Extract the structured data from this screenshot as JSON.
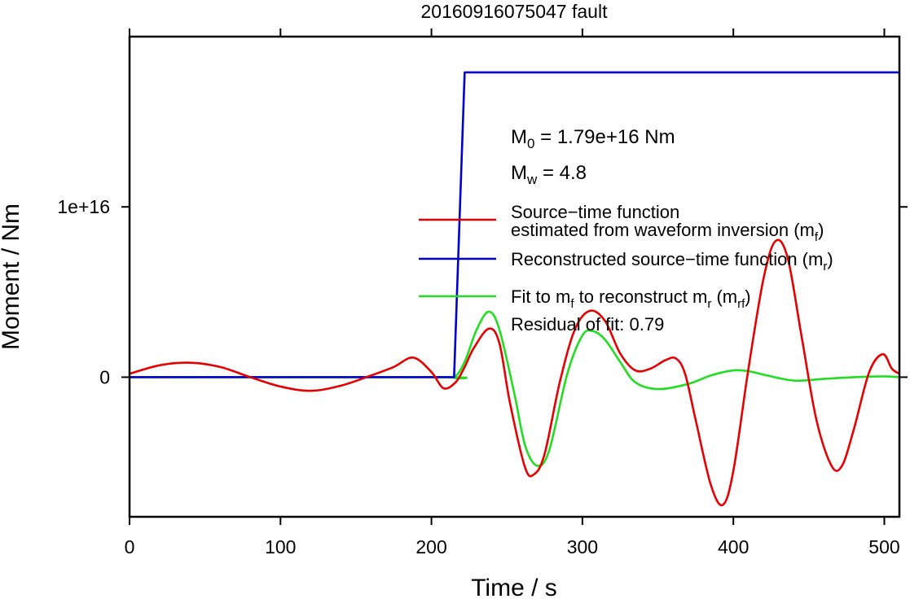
{
  "chart_data": {
    "type": "line",
    "title": "20160916075047 fault",
    "xlabel": "Time / s",
    "ylabel": "Moment / Nm",
    "xlim": [
      0,
      510
    ],
    "ylim": [
      -8200000000000000.0,
      2e+16
    ],
    "x_ticks": [
      0,
      100,
      200,
      300,
      400,
      500
    ],
    "x_tick_labels": [
      "0",
      "100",
      "200",
      "300",
      "400",
      "500"
    ],
    "y_ticks": [
      0,
      1e+16
    ],
    "y_tick_labels": [
      "0",
      "1e+16"
    ],
    "grid": false,
    "legend_position": "right",
    "annotations": {
      "m0": {
        "base": "M",
        "sub": "0",
        "rest": " = 1.79e+16 Nm"
      },
      "mw": {
        "base": "M",
        "sub": "w",
        "rest": " = 4.8"
      },
      "residual": "Residual of fit: 0.79"
    },
    "legend": [
      {
        "series": "red",
        "line1": "Source−time function",
        "line2_pre": "estimated from waveform inversion (m",
        "line2_sub": "f",
        "line2_post": ")"
      },
      {
        "series": "blue",
        "pre": "Reconstructed source−time function (m",
        "sub": "r",
        "post": ")"
      },
      {
        "series": "green",
        "pre": "Fit to m",
        "sub1": "f",
        "mid": " to reconstruct m",
        "sub2": "r",
        "mid2": " (m",
        "sub3": "rf",
        "post": ")"
      }
    ],
    "series": [
      {
        "id": "red",
        "color": "#e60000",
        "x": [
          0,
          20,
          40,
          60,
          80,
          100,
          120,
          140,
          160,
          175,
          188,
          200,
          208,
          216,
          222,
          228,
          238,
          245,
          252,
          262,
          268,
          275,
          285,
          295,
          305,
          315,
          325,
          335,
          345,
          355,
          362,
          368,
          375,
          385,
          393,
          400,
          410,
          420,
          428,
          436,
          445,
          455,
          465,
          472,
          480,
          490,
          499,
          505,
          510
        ],
        "y": [
          200000000000000.0,
          700000000000000.0,
          850000000000000.0,
          600000000000000.0,
          0.0,
          -550000000000000.0,
          -800000000000000.0,
          -500000000000000.0,
          100000000000000.0,
          600000000000000.0,
          1150000000000000.0,
          300000000000000.0,
          -650000000000000.0,
          -300000000000000.0,
          600000000000000.0,
          1700000000000000.0,
          2850000000000000.0,
          2000000000000000.0,
          -1500000000000000.0,
          -5300000000000000.0,
          -5700000000000000.0,
          -4500000000000000.0,
          -300000000000000.0,
          2800000000000000.0,
          3900000000000000.0,
          3300000000000000.0,
          1400000000000000.0,
          400000000000000.0,
          500000000000000.0,
          1000000000000000.0,
          1100000000000000.0,
          200000000000000.0,
          -2500000000000000.0,
          -6300000000000000.0,
          -7500000000000000.0,
          -5500000000000000.0,
          500000000000000.0,
          5800000000000000.0,
          8000000000000000.0,
          7000000000000000.0,
          2500000000000000.0,
          -2500000000000000.0,
          -5200000000000000.0,
          -5200000000000000.0,
          -3000000000000000.0,
          300000000000000.0,
          1350000000000000.0,
          500000000000000.0,
          200000000000000.0
        ]
      },
      {
        "id": "blue",
        "color": "#0000d0",
        "x": [
          0,
          215,
          222,
          510
        ],
        "y": [
          0,
          0,
          1.79e+16,
          1.79e+16
        ]
      },
      {
        "id": "green",
        "color": "#22dd22",
        "x": [
          0,
          205,
          215,
          222,
          230,
          238,
          245,
          255,
          262,
          270,
          278,
          290,
          300,
          307,
          315,
          325,
          335,
          350,
          370,
          385,
          400,
          410,
          420,
          440,
          460,
          480,
          500,
          510
        ],
        "y": [
          0,
          0,
          0,
          900000000000000.0,
          2800000000000000.0,
          3850000000000000.0,
          2800000000000000.0,
          -1000000000000000.0,
          -4000000000000000.0,
          -5200000000000000.0,
          -4300000000000000.0,
          200000000000000.0,
          2450000000000000.0,
          2700000000000000.0,
          2200000000000000.0,
          900000000000000.0,
          -300000000000000.0,
          -700000000000000.0,
          -400000000000000.0,
          100000000000000.0,
          400000000000000.0,
          350000000000000.0,
          150000000000000.0,
          -200000000000000.0,
          -100000000000000.0,
          0.0,
          50000000000000.0,
          0.0
        ]
      }
    ]
  }
}
